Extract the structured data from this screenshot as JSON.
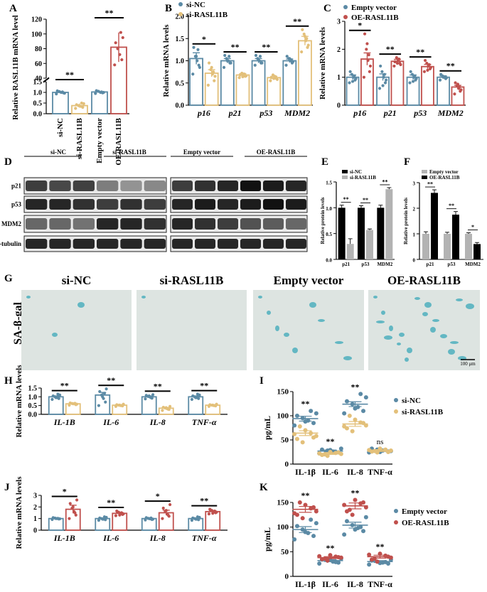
{
  "colors": {
    "nc": "#5b8aa5",
    "si": "#e3c07a",
    "ev": "#5b8aa5",
    "oe": "#c0504d",
    "wb_black": "#000000",
    "wb_gray": "#b3b3b3",
    "sa_bg": "#dde4e1",
    "sa_blue": "#3aa8b8"
  },
  "panel_labels": {
    "A": "A",
    "B": "B",
    "C": "C",
    "D": "D",
    "E": "E",
    "F": "F",
    "G": "G",
    "H": "H",
    "I": "I",
    "J": "J",
    "K": "K"
  },
  "chart_data": [
    {
      "id": "A",
      "type": "dot-bar",
      "ylabel": "Relative RASL11B mRNA level",
      "axis_lower": {
        "ticks": [
          "0.0",
          "0.5",
          "1.0",
          "1.5"
        ],
        "ylim": [
          0,
          1.5
        ]
      },
      "axis_upper": {
        "ticks": [
          "40",
          "60",
          "80",
          "100",
          "120"
        ],
        "ylim": [
          40,
          120
        ]
      },
      "categories": [
        "si-NC",
        "si-RASL11B",
        "Empty vector",
        "OE-RASL11B"
      ],
      "means": [
        1.0,
        0.38,
        1.02,
        82
      ],
      "errors": [
        0.06,
        0.1,
        0.06,
        20
      ],
      "points": [
        [
          0.93,
          0.98,
          1.0,
          1.04,
          1.07,
          0.96,
          1.02
        ],
        [
          0.25,
          0.3,
          0.35,
          0.38,
          0.42,
          0.47,
          0.5
        ],
        [
          0.95,
          0.98,
          1.0,
          1.05,
          1.08,
          1.0,
          1.02
        ],
        [
          58,
          65,
          72,
          80,
          88,
          95,
          102
        ]
      ],
      "significance": [
        {
          "label": "**",
          "between": [
            0,
            1
          ]
        },
        {
          "label": "**",
          "between": [
            2,
            3
          ]
        }
      ]
    },
    {
      "id": "B",
      "type": "dot-bar",
      "ylabel": "Relative mRNA levels",
      "ylim": [
        0,
        2.0
      ],
      "ticks": [
        "0.0",
        "0.5",
        "1.0",
        "1.5",
        "2.0"
      ],
      "categories": [
        "p16",
        "p21",
        "p53",
        "MDM2"
      ],
      "legend": [
        "si-NC",
        "si-RASL11B"
      ],
      "series": [
        {
          "name": "si-NC",
          "means": [
            1.05,
            1.0,
            1.0,
            1.0
          ],
          "errors": [
            0.13,
            0.05,
            0.05,
            0.04
          ],
          "points": [
            [
              0.7,
              0.9,
              1.0,
              1.1,
              1.3,
              0.85,
              1.25,
              1.1
            ],
            [
              0.85,
              0.95,
              1.0,
              1.05,
              1.12,
              0.95,
              1.1,
              1.0
            ],
            [
              0.9,
              0.95,
              1.0,
              1.05,
              1.12,
              0.95,
              1.1,
              1.02
            ],
            [
              0.9,
              0.95,
              1.0,
              1.05,
              1.1,
              0.98,
              1.02,
              1.05
            ]
          ]
        },
        {
          "name": "si-RASL11B",
          "means": [
            0.72,
            0.68,
            0.62,
            1.45
          ],
          "errors": [
            0.08,
            0.03,
            0.03,
            0.1
          ],
          "points": [
            [
              0.45,
              0.55,
              0.7,
              0.8,
              0.95,
              0.65,
              0.75,
              0.85
            ],
            [
              0.62,
              0.65,
              0.7,
              0.72,
              0.68,
              0.66,
              0.7,
              0.64
            ],
            [
              0.55,
              0.6,
              0.65,
              0.68,
              0.62,
              0.58,
              0.64,
              0.6
            ],
            [
              1.2,
              1.3,
              1.45,
              1.6,
              1.7,
              1.35,
              1.5,
              1.55
            ]
          ]
        }
      ],
      "significance": [
        "*",
        "**",
        "**",
        "**"
      ]
    },
    {
      "id": "C",
      "type": "dot-bar",
      "ylabel": "Relative mRNA levels",
      "ylim": [
        0,
        3
      ],
      "ticks": [
        "0",
        "1",
        "2",
        "3"
      ],
      "categories": [
        "p16",
        "p21",
        "p53",
        "MDM2"
      ],
      "legend": [
        "Empty vector",
        "OE-RASL11B"
      ],
      "series": [
        {
          "name": "Empty vector",
          "means": [
            1.0,
            1.0,
            1.0,
            1.0
          ],
          "errors": [
            0.08,
            0.12,
            0.08,
            0.05
          ],
          "points": [
            [
              0.8,
              0.9,
              1.0,
              1.1,
              1.2,
              0.95,
              1.05,
              0.85
            ],
            [
              0.6,
              0.8,
              1.0,
              1.2,
              1.4,
              0.9,
              1.1,
              0.7
            ],
            [
              0.8,
              0.9,
              1.0,
              1.1,
              1.2,
              0.95,
              1.05,
              0.85
            ],
            [
              0.9,
              0.95,
              1.0,
              1.05,
              1.1,
              0.98,
              1.02,
              1.0
            ]
          ]
        },
        {
          "name": "OE-RASL11B",
          "means": [
            1.65,
            1.57,
            1.38,
            0.65
          ],
          "errors": [
            0.22,
            0.07,
            0.08,
            0.06
          ],
          "points": [
            [
              1.0,
              1.2,
              1.6,
              2.0,
              2.55,
              1.4,
              1.8,
              2.2
            ],
            [
              1.4,
              1.5,
              1.6,
              1.7,
              1.55,
              1.45,
              1.65,
              1.5
            ],
            [
              1.2,
              1.3,
              1.4,
              1.5,
              1.6,
              1.35,
              1.45,
              1.25
            ],
            [
              0.4,
              0.5,
              0.6,
              0.7,
              0.8,
              0.55,
              0.65,
              0.75
            ]
          ]
        }
      ],
      "significance": [
        "*",
        "**",
        "**",
        "**"
      ]
    },
    {
      "id": "E",
      "type": "bar",
      "ylabel": "Relative protein levels",
      "ylim": [
        0,
        1.5
      ],
      "ticks": [
        "0.0",
        "0.5",
        "1.0",
        "1.5"
      ],
      "categories": [
        "p21",
        "p53",
        "MDM2"
      ],
      "legend": [
        "si-NC",
        "si-RASL11B"
      ],
      "series": [
        {
          "name": "si-NC",
          "values": [
            1.0,
            1.0,
            1.0
          ],
          "errors": [
            0.05,
            0.04,
            0.05
          ]
        },
        {
          "name": "si-RASL11B",
          "values": [
            0.3,
            0.57,
            1.36
          ],
          "errors": [
            0.1,
            0.02,
            0.03
          ]
        }
      ],
      "significance": [
        "**",
        "**",
        "**"
      ]
    },
    {
      "id": "F",
      "type": "bar",
      "ylabel": "Relative protein levels",
      "ylim": [
        0,
        3
      ],
      "ticks": [
        "0",
        "1",
        "2",
        "3"
      ],
      "categories": [
        "p21",
        "p53",
        "MDM2"
      ],
      "legend": [
        "Empty vector",
        "OE-RASL11B"
      ],
      "series": [
        {
          "name": "Empty vector",
          "values": [
            1.0,
            1.0,
            1.0
          ],
          "errors": [
            0.08,
            0.06,
            0.04
          ]
        },
        {
          "name": "OE-RASL11B",
          "values": [
            2.6,
            1.75,
            0.6
          ],
          "errors": [
            0.12,
            0.12,
            0.06
          ]
        }
      ],
      "significance": [
        "**",
        "**",
        "*"
      ]
    },
    {
      "id": "H",
      "type": "dot-bar",
      "ylabel": "Relative mRNA levels",
      "ylim": [
        0,
        1.5
      ],
      "ticks": [
        "0.0",
        "0.5",
        "1.0",
        "1.5"
      ],
      "categories": [
        "IL-1B",
        "IL-6",
        "IL-8",
        "TNF-α"
      ],
      "series": [
        {
          "name": "si-NC",
          "means": [
            1.0,
            1.1,
            1.0,
            1.0
          ],
          "errors": [
            0.05,
            0.15,
            0.05,
            0.05
          ],
          "points": [
            [
              0.85,
              0.9,
              0.95,
              1.0,
              1.05,
              1.1,
              1.15,
              0.95
            ],
            [
              0.5,
              0.7,
              0.9,
              1.1,
              1.3,
              1.45,
              1.2,
              1.0
            ],
            [
              0.88,
              0.92,
              0.98,
              1.02,
              1.08,
              1.12,
              0.95,
              1.05
            ],
            [
              0.85,
              0.9,
              0.95,
              1.0,
              1.05,
              1.1,
              1.15,
              0.95
            ]
          ]
        },
        {
          "name": "si-RASL11B",
          "means": [
            0.6,
            0.52,
            0.35,
            0.52
          ],
          "errors": [
            0.03,
            0.03,
            0.04,
            0.03
          ],
          "points": [
            [
              0.52,
              0.55,
              0.6,
              0.62,
              0.65,
              0.58,
              0.63,
              0.6
            ],
            [
              0.45,
              0.48,
              0.5,
              0.52,
              0.55,
              0.58,
              0.5,
              0.53
            ],
            [
              0.22,
              0.28,
              0.32,
              0.36,
              0.4,
              0.45,
              0.3,
              0.38
            ],
            [
              0.45,
              0.48,
              0.5,
              0.52,
              0.55,
              0.58,
              0.5,
              0.53
            ]
          ]
        }
      ],
      "significance": [
        "**",
        "**",
        "**",
        "**"
      ]
    },
    {
      "id": "I",
      "type": "scatter",
      "ylabel": "pg/mL",
      "ylim": [
        0,
        150
      ],
      "ticks": [
        "0",
        "50",
        "100",
        "150"
      ],
      "categories": [
        "IL-1β",
        "IL-6",
        "IL-8",
        "TNF-α"
      ],
      "legend": [
        "si-NC",
        "si-RASL11B"
      ],
      "series": [
        {
          "name": "si-NC",
          "means": [
            94,
            27,
            124,
            28
          ],
          "errors": [
            5,
            2,
            5,
            2
          ],
          "points": [
            [
              80,
              85,
              90,
              95,
              100,
              105,
              110,
              88
            ],
            [
              22,
              24,
              26,
              28,
              30,
              32,
              25,
              29
            ],
            [
              105,
              110,
              118,
              124,
              130,
              138,
              145,
              115
            ],
            [
              24,
              26,
              28,
              30,
              32,
              27,
              29,
              25
            ]
          ]
        },
        {
          "name": "si-RASL11B",
          "means": [
            64,
            22,
            83,
            28
          ],
          "errors": [
            5,
            2,
            5,
            2
          ],
          "points": [
            [
              45,
              52,
              58,
              64,
              70,
              78,
              62,
              55
            ],
            [
              17,
              19,
              21,
              23,
              25,
              20,
              22,
              24
            ],
            [
              68,
              74,
              80,
              86,
              92,
              100,
              78,
              85
            ],
            [
              24,
              26,
              28,
              30,
              32,
              27,
              29,
              25
            ]
          ]
        }
      ],
      "significance": [
        "**",
        "**",
        "**",
        "ns"
      ]
    },
    {
      "id": "J",
      "type": "dot-bar",
      "ylabel": "Relative mRNA levels",
      "ylim": [
        0,
        3
      ],
      "ticks": [
        "0",
        "1",
        "2",
        "3"
      ],
      "categories": [
        "IL-1B",
        "IL-6",
        "IL-8",
        "TNF-α"
      ],
      "series": [
        {
          "name": "Empty vector",
          "means": [
            1.0,
            1.0,
            1.0,
            1.0
          ],
          "errors": [
            0.03,
            0.05,
            0.04,
            0.05
          ],
          "points": [
            [
              0.92,
              0.96,
              1.0,
              1.04,
              1.08,
              0.98,
              1.02,
              1.0
            ],
            [
              0.85,
              0.9,
              0.95,
              1.0,
              1.05,
              1.1,
              1.15,
              0.95
            ],
            [
              0.88,
              0.92,
              0.98,
              1.02,
              1.08,
              0.95,
              1.05,
              1.0
            ],
            [
              0.85,
              0.9,
              0.95,
              1.0,
              1.05,
              1.1,
              1.15,
              0.95
            ]
          ]
        },
        {
          "name": "OE-RASL11B",
          "means": [
            1.8,
            1.45,
            1.5,
            1.6
          ],
          "errors": [
            0.35,
            0.08,
            0.22,
            0.08
          ],
          "points": [
            [
              1.0,
              1.3,
              1.6,
              1.9,
              2.3,
              2.6,
              1.5,
              2.0
            ],
            [
              1.25,
              1.35,
              1.45,
              1.55,
              1.65,
              1.4,
              1.5,
              1.3
            ],
            [
              1.0,
              1.2,
              1.4,
              1.6,
              1.9,
              2.2,
              1.3,
              1.7
            ],
            [
              1.4,
              1.5,
              1.6,
              1.7,
              1.8,
              1.55,
              1.65,
              1.45
            ]
          ]
        }
      ],
      "significance": [
        "*",
        "**",
        "*",
        "**"
      ]
    },
    {
      "id": "K",
      "type": "scatter",
      "ylabel": "pg/mL",
      "ylim": [
        0,
        150
      ],
      "ticks": [
        "0",
        "50",
        "100",
        "150"
      ],
      "categories": [
        "IL-1β",
        "IL-6",
        "IL-8",
        "TNF-α"
      ],
      "legend": [
        "Empty vector",
        "OE-RASL11B"
      ],
      "series": [
        {
          "name": "Empty vector",
          "means": [
            95,
            32,
            104,
            30
          ],
          "errors": [
            6,
            2,
            6,
            2
          ],
          "points": [
            [
              75,
              82,
              88,
              95,
              102,
              108,
              115,
              90
            ],
            [
              26,
              28,
              30,
              32,
              34,
              36,
              29,
              33
            ],
            [
              85,
              92,
              98,
              104,
              112,
              120,
              100,
              95
            ],
            [
              24,
              26,
              28,
              30,
              32,
              34,
              29,
              27
            ]
          ]
        },
        {
          "name": "OE-RASL11B",
          "means": [
            136,
            38,
            143,
            40
          ],
          "errors": [
            6,
            2,
            6,
            3
          ],
          "points": [
            [
              118,
              125,
              132,
              138,
              145,
              150,
              128,
              140
            ],
            [
              32,
              35,
              38,
              40,
              43,
              36,
              41,
              39
            ],
            [
              125,
              132,
              140,
              148,
              155,
              135,
              145,
              150
            ],
            [
              30,
              34,
              38,
              42,
              46,
              36,
              44,
              40
            ]
          ]
        }
      ],
      "significance": [
        "**",
        "**",
        "**",
        "**"
      ]
    }
  ],
  "western": {
    "left_groups": [
      "si-NC",
      "si-RASL11B"
    ],
    "right_groups": [
      "Empty vector",
      "OE-RASL11B"
    ],
    "proteins": [
      "p21",
      "p53",
      "MDM2",
      "β-tubulin"
    ]
  },
  "sa_gal": {
    "row_label": "SA-β-gal",
    "labels": [
      "si-NC",
      "si-RASL11B",
      "Empty vector",
      "OE-RASL11B"
    ],
    "scale": "100 μm"
  }
}
